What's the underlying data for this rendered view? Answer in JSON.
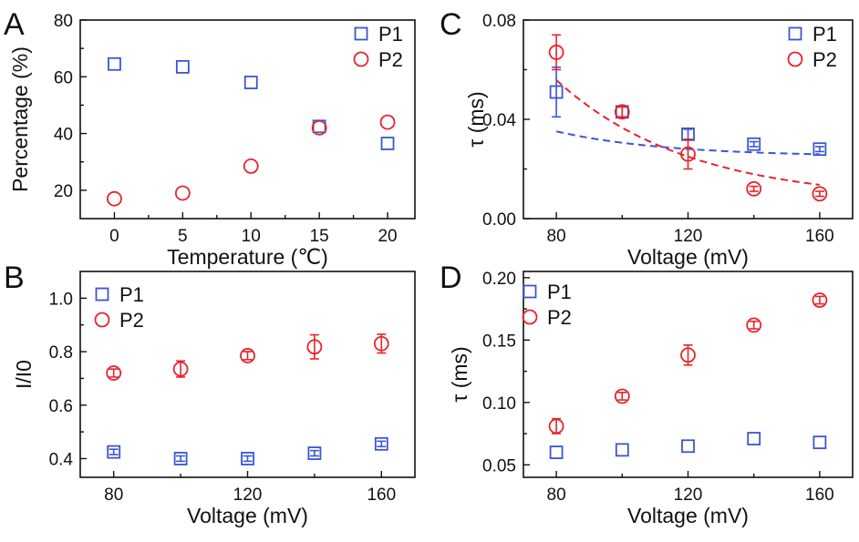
{
  "colors": {
    "P1": "#3a55d6",
    "P2": "#e8222b",
    "axis": "#111111"
  },
  "chart_data": [
    {
      "panel": "A",
      "type": "scatter",
      "xlabel": "Temperature (℃)",
      "ylabel": "Percentage (%)",
      "xlim": [
        -2.5,
        22
      ],
      "ylim": [
        10,
        80
      ],
      "xticks": [
        0,
        5,
        10,
        15,
        20
      ],
      "yticks": [
        20,
        40,
        60,
        80
      ],
      "xticklabels": [
        "0",
        "5",
        "10",
        "15",
        "20"
      ],
      "yticklabels": [
        "20",
        "40",
        "60",
        "80"
      ],
      "legend": "top-right",
      "series": [
        {
          "name": "P1",
          "marker": "square",
          "x": [
            0,
            5,
            10,
            15,
            20
          ],
          "y": [
            64.5,
            63.5,
            58,
            42.5,
            36.5
          ]
        },
        {
          "name": "P2",
          "marker": "circle",
          "x": [
            0,
            5,
            10,
            15,
            20
          ],
          "y": [
            17,
            19,
            28.5,
            42,
            44
          ]
        }
      ]
    },
    {
      "panel": "B",
      "type": "scatter",
      "xlabel": "Voltage (mV)",
      "ylabel": "I/I0",
      "xlim": [
        70,
        170
      ],
      "ylim": [
        0.33,
        1.1
      ],
      "xticks": [
        80,
        120,
        160
      ],
      "yticks": [
        0.4,
        0.6,
        0.8,
        1.0
      ],
      "xticklabels": [
        "80",
        "120",
        "160"
      ],
      "yticklabels": [
        "0.4",
        "0.6",
        "0.8",
        "1.0"
      ],
      "legend": "top-left",
      "series": [
        {
          "name": "P1",
          "marker": "square",
          "x": [
            80,
            100,
            120,
            140,
            160
          ],
          "y": [
            0.425,
            0.4,
            0.4,
            0.42,
            0.455
          ],
          "err": [
            0.01,
            0.01,
            0.01,
            0.01,
            0.01
          ]
        },
        {
          "name": "P2",
          "marker": "circle",
          "x": [
            80,
            100,
            120,
            140,
            160
          ],
          "y": [
            0.72,
            0.735,
            0.785,
            0.818,
            0.83
          ],
          "err": [
            0.015,
            0.03,
            0.015,
            0.045,
            0.035
          ]
        }
      ]
    },
    {
      "panel": "C",
      "type": "scatter",
      "xlabel": "Voltage (mV)",
      "ylabel": "τ (ms)",
      "xlim": [
        70,
        170
      ],
      "ylim": [
        0,
        0.08
      ],
      "xticks": [
        80,
        120,
        160
      ],
      "yticks": [
        0.0,
        0.04,
        0.08
      ],
      "xticklabels": [
        "80",
        "120",
        "160"
      ],
      "yticklabels": [
        "0.00",
        "0.04",
        "0.08"
      ],
      "legend": "top-right",
      "series": [
        {
          "name": "P1",
          "marker": "square",
          "x": [
            80,
            100,
            120,
            140,
            160
          ],
          "y": [
            0.051,
            0.043,
            0.034,
            0.03,
            0.028
          ],
          "err": [
            0.01,
            0.002,
            0.002,
            0.001,
            0.001
          ],
          "fit": {
            "a": 0.025,
            "b": 0.112,
            "k": 0.03
          }
        },
        {
          "name": "P2",
          "marker": "circle",
          "x": [
            80,
            100,
            120,
            140,
            160
          ],
          "y": [
            0.067,
            0.043,
            0.026,
            0.012,
            0.01
          ],
          "err": [
            0.007,
            0.002,
            0.006,
            0.001,
            0.001
          ],
          "fit": {
            "a": 0.007,
            "b": 0.361,
            "k": 0.025
          }
        }
      ]
    },
    {
      "panel": "D",
      "type": "scatter",
      "xlabel": "Voltage (mV)",
      "ylabel": "τ (ms)",
      "xlim": [
        70,
        170
      ],
      "ylim": [
        0.04,
        0.205
      ],
      "xticks": [
        80,
        120,
        160
      ],
      "yticks": [
        0.05,
        0.1,
        0.15,
        0.2
      ],
      "xticklabels": [
        "80",
        "120",
        "160"
      ],
      "yticklabels": [
        "0.05",
        "0.10",
        "0.15",
        "0.20"
      ],
      "legend": "top-left",
      "series": [
        {
          "name": "P1",
          "marker": "square",
          "x": [
            80,
            100,
            120,
            140,
            160
          ],
          "y": [
            0.06,
            0.062,
            0.065,
            0.071,
            0.068
          ]
        },
        {
          "name": "P2",
          "marker": "circle",
          "x": [
            80,
            100,
            120,
            140,
            160
          ],
          "y": [
            0.081,
            0.105,
            0.138,
            0.162,
            0.182
          ],
          "err": [
            0.006,
            0.003,
            0.008,
            0.003,
            0.003
          ]
        }
      ]
    }
  ]
}
